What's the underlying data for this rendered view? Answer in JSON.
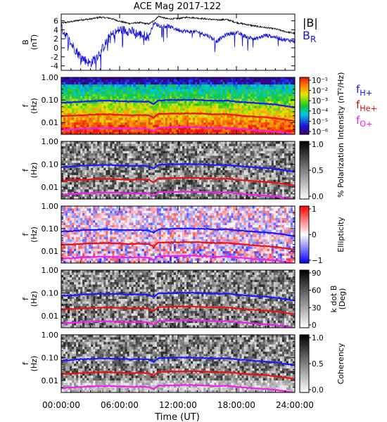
{
  "title": "ACE Mag 2017-122",
  "xlabel": "Time (UT)",
  "x_ticks": [
    "00:00:00",
    "06:00:00",
    "12:00:00",
    "18:00:00",
    "24:00:00"
  ],
  "x_range": [
    0,
    24
  ],
  "colors": {
    "btot": "#000000",
    "br": "#1010e0",
    "fh": "#1a1aff",
    "fhe": "#ee1111",
    "fo": "#ee22ee"
  },
  "chart_data": [
    {
      "type": "line",
      "panel": "magnetic field",
      "ylabel": [
        "B",
        "(nT)"
      ],
      "ylim": [
        -5,
        7.5
      ],
      "y_ticks": [
        "6",
        "4",
        "2",
        "0",
        "-2",
        "-4"
      ],
      "series": [
        {
          "name": "|B|",
          "x": [
            0,
            1,
            2,
            3,
            4,
            5,
            6,
            7,
            8,
            9,
            9.5,
            10,
            11,
            12,
            13,
            14,
            15,
            16,
            17,
            18,
            19,
            20,
            21,
            22,
            23,
            24
          ],
          "values": [
            5.5,
            5.8,
            6.2,
            6.4,
            6.8,
            6.6,
            5.9,
            5.4,
            5.6,
            5.3,
            6.0,
            7.0,
            6.4,
            6.5,
            6.8,
            6.6,
            6.4,
            6.2,
            6.3,
            5.6,
            5.2,
            4.8,
            4.5,
            4.2,
            3.6,
            3.2
          ]
        },
        {
          "name": "B",
          "subscript": "R",
          "x": [
            0,
            1,
            2,
            3,
            4,
            5,
            6,
            7,
            8,
            9,
            9.5,
            10,
            11,
            12,
            13,
            14,
            15,
            16,
            17,
            18,
            19,
            20,
            21,
            22,
            23,
            24
          ],
          "values": [
            4.5,
            1.0,
            -2.0,
            -3.5,
            -1.0,
            2.5,
            4.0,
            3.8,
            3.0,
            2.5,
            5.5,
            5.0,
            4.8,
            4.0,
            3.6,
            3.5,
            2.8,
            1.5,
            3.0,
            3.4,
            2.5,
            2.0,
            2.8,
            2.4,
            1.8,
            1.5
          ]
        }
      ]
    },
    {
      "type": "heatmap",
      "panel": "power spectral intensity",
      "ylabel": [
        "f",
        "(Hz)"
      ],
      "ylim": [
        0.003,
        1.0
      ],
      "y_scale": "log",
      "y_ticks": [
        "1.00",
        "0.10",
        "0.01"
      ],
      "colorbar": {
        "label": "Intensity (nT²/Hz)",
        "ticks": [
          "10⁻¹",
          "10⁻²",
          "10⁻³",
          "10⁻⁴",
          "10⁻⁵",
          "10⁻⁶"
        ],
        "palette": "rainbow"
      },
      "legend": [
        {
          "name": "f",
          "subscript": "H+",
          "color": "#1a1aff"
        },
        {
          "name": "f",
          "subscript": "He+",
          "color": "#cc1111"
        },
        {
          "name": "f",
          "subscript": "O+",
          "color": "#ee22ee"
        }
      ]
    },
    {
      "type": "heatmap",
      "panel": "polarization",
      "ylabel": [
        "f",
        "(Hz)"
      ],
      "ylim": [
        0.003,
        1.0
      ],
      "y_scale": "log",
      "y_ticks": [
        "1.00",
        "0.10",
        "0.01"
      ],
      "colorbar": {
        "label": "% Polarization",
        "ticks": [
          "1.0",
          "0.5",
          "0.0"
        ],
        "palette": "gray"
      }
    },
    {
      "type": "heatmap",
      "panel": "ellipticity",
      "ylabel": [
        "f",
        "(Hz)"
      ],
      "ylim": [
        0.003,
        1.0
      ],
      "y_scale": "log",
      "y_ticks": [
        "1.00",
        "0.10",
        "0.01"
      ],
      "colorbar": {
        "label": "Ellipticity",
        "ticks": [
          "1",
          "0",
          "−1"
        ],
        "palette": "bwr"
      }
    },
    {
      "type": "heatmap",
      "panel": "wave normal angle",
      "ylabel": [
        "f",
        "(Hz)"
      ],
      "ylim": [
        0.003,
        1.0
      ],
      "y_scale": "log",
      "y_ticks": [
        "1.00",
        "0.10",
        "0.01"
      ],
      "colorbar": {
        "label": "k dot B",
        "label2": "(Deg)",
        "ticks": [
          "90",
          "60",
          "30",
          "0"
        ],
        "palette": "gray"
      }
    },
    {
      "type": "heatmap",
      "panel": "coherency",
      "ylabel": [
        "f",
        "(Hz)"
      ],
      "ylim": [
        0.003,
        1.0
      ],
      "y_scale": "log",
      "y_ticks": [
        "1.00",
        "0.10",
        "0.01"
      ],
      "colorbar": {
        "label": "Coherency",
        "ticks": [
          "1.0",
          "0.5",
          "0.0"
        ],
        "palette": "gray"
      }
    }
  ],
  "gyrofrequency_lines": {
    "x": [
      0,
      1,
      2,
      3,
      4,
      5,
      6,
      7,
      8,
      9,
      9.5,
      10,
      11,
      12,
      13,
      14,
      15,
      16,
      17,
      18,
      19,
      20,
      21,
      22,
      23,
      24
    ],
    "fH": [
      0.075,
      0.078,
      0.085,
      0.088,
      0.092,
      0.092,
      0.088,
      0.085,
      0.086,
      0.083,
      0.065,
      0.095,
      0.098,
      0.1,
      0.102,
      0.1,
      0.096,
      0.092,
      0.094,
      0.084,
      0.078,
      0.072,
      0.068,
      0.062,
      0.054,
      0.046
    ],
    "fHe": [
      0.019,
      0.02,
      0.021,
      0.022,
      0.023,
      0.023,
      0.022,
      0.021,
      0.0215,
      0.021,
      0.016,
      0.024,
      0.0245,
      0.025,
      0.0255,
      0.025,
      0.024,
      0.023,
      0.0235,
      0.021,
      0.0195,
      0.018,
      0.017,
      0.0155,
      0.0135,
      0.0115
    ],
    "fO": [
      0.0047,
      0.0049,
      0.0053,
      0.0055,
      0.0057,
      0.0057,
      0.0055,
      0.0053,
      0.0054,
      0.0052,
      0.0041,
      0.0059,
      0.0061,
      0.0062,
      0.0064,
      0.0062,
      0.006,
      0.0057,
      0.0059,
      0.0053,
      0.0049,
      0.0045,
      0.0042,
      0.0039,
      0.0034,
      0.0029
    ]
  }
}
